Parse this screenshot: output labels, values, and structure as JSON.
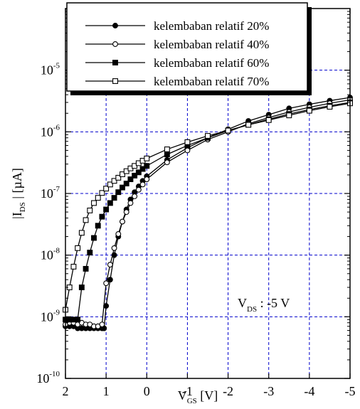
{
  "chart_data": {
    "type": "line",
    "x_axis": {
      "range": [
        2,
        -5
      ],
      "direction": "decreasing left-to-right",
      "ticks": [
        2,
        1,
        0,
        -1,
        -2,
        -3,
        -4,
        -5
      ],
      "tick_labels": [
        "2",
        "1",
        "0",
        "-1",
        "-2",
        "-3",
        "-4",
        "-5"
      ],
      "label_main": "V",
      "label_sub": "GS",
      "label_unit": " [V]"
    },
    "y_axis": {
      "scale": "log",
      "range": [
        1e-10,
        0.0001
      ],
      "ticks": [
        1e-10,
        1e-09,
        1e-08,
        1e-07,
        1e-06,
        1e-05
      ],
      "tick_labels": [
        {
          "base": "10",
          "exp": "-10"
        },
        {
          "base": "10",
          "exp": "-9"
        },
        {
          "base": "10",
          "exp": "-8"
        },
        {
          "base": "10",
          "exp": "-7"
        },
        {
          "base": "10",
          "exp": "-6"
        },
        {
          "base": "10",
          "exp": "-5"
        }
      ],
      "label_pre": "|I",
      "label_sub": "DS",
      "label_post": " | [µA]"
    },
    "grid": true,
    "legend_position": "top",
    "annotation": {
      "main": "V",
      "sub": "DS",
      "rest": " : -5 V"
    },
    "series": [
      {
        "name": "kelembaban relatif 20%",
        "marker": "filled-circle",
        "x": [
          2,
          1.9,
          1.8,
          1.7,
          1.6,
          1.5,
          1.4,
          1.3,
          1.2,
          1.1,
          1.05,
          1.0,
          0.9,
          0.8,
          0.7,
          0.6,
          0.5,
          0.4,
          0.3,
          0.2,
          0.1,
          0,
          -0.5,
          -1,
          -1.5,
          -2,
          -2.5,
          -3,
          -3.5,
          -4,
          -4.5,
          -5
        ],
        "y": [
          7e-10,
          7e-10,
          7e-10,
          6.5e-10,
          6.5e-10,
          6.5e-10,
          6.5e-10,
          6.5e-10,
          6.5e-10,
          6.5e-10,
          6.5e-10,
          1.5e-09,
          4e-09,
          1e-08,
          2e-08,
          3.5e-08,
          5.5e-08,
          8e-08,
          1.05e-07,
          1.3e-07,
          1.6e-07,
          1.9e-07,
          3.5e-07,
          5.5e-07,
          8e-07,
          1.1e-06,
          1.5e-06,
          1.9e-06,
          2.4e-06,
          2.8e-06,
          3.2e-06,
          3.6e-06
        ]
      },
      {
        "name": "kelembaban relatif 40%",
        "marker": "open-circle",
        "x": [
          2,
          1.9,
          1.8,
          1.7,
          1.6,
          1.5,
          1.4,
          1.3,
          1.2,
          1.1,
          1.0,
          0.9,
          0.8,
          0.7,
          0.6,
          0.5,
          0.4,
          0.3,
          0.2,
          0.1,
          0,
          -0.5,
          -1,
          -1.5,
          -2,
          -2.5,
          -3,
          -3.5,
          -4,
          -4.5,
          -5
        ],
        "y": [
          7.5e-10,
          8e-10,
          8e-10,
          7.5e-10,
          8e-10,
          7.5e-10,
          7.5e-10,
          7e-10,
          7e-10,
          7.5e-10,
          3.5e-09,
          7e-09,
          1.3e-08,
          2.2e-08,
          3.5e-08,
          5e-08,
          7e-08,
          9e-08,
          1.15e-07,
          1.4e-07,
          1.7e-07,
          3.2e-07,
          5e-07,
          7.5e-07,
          1e-06,
          1.35e-06,
          1.7e-06,
          2.1e-06,
          2.5e-06,
          2.9e-06,
          3.3e-06
        ]
      },
      {
        "name": "kelembaban relatif 60%",
        "marker": "filled-square",
        "x": [
          2,
          1.9,
          1.8,
          1.7,
          1.6,
          1.5,
          1.4,
          1.3,
          1.2,
          1.1,
          1.0,
          0.9,
          0.8,
          0.7,
          0.6,
          0.5,
          0.4,
          0.3,
          0.2,
          0.1,
          0,
          -0.5,
          -1,
          -1.5,
          -2,
          -2.5,
          -3,
          -3.5,
          -4,
          -4.5,
          -5
        ],
        "y": [
          9e-10,
          9e-10,
          9e-10,
          9e-10,
          3e-09,
          6e-09,
          1.1e-08,
          1.9e-08,
          3e-08,
          4.2e-08,
          5.5e-08,
          7e-08,
          8.5e-08,
          1.05e-07,
          1.25e-07,
          1.45e-07,
          1.7e-07,
          1.95e-07,
          2.2e-07,
          2.5e-07,
          2.8e-07,
          4.3e-07,
          6e-07,
          8e-07,
          1.05e-06,
          1.3e-06,
          1.6e-06,
          1.95e-06,
          2.3e-06,
          2.65e-06,
          3e-06
        ]
      },
      {
        "name": "kelembaban relatif 70%",
        "marker": "open-square",
        "x": [
          2,
          1.9,
          1.8,
          1.7,
          1.6,
          1.5,
          1.4,
          1.3,
          1.2,
          1.1,
          1.0,
          0.9,
          0.8,
          0.7,
          0.6,
          0.5,
          0.4,
          0.3,
          0.2,
          0.1,
          0,
          -0.5,
          -1,
          -1.5,
          -2,
          -2.5,
          -3,
          -3.5,
          -4,
          -4.5,
          -5
        ],
        "y": [
          1.3e-09,
          3e-09,
          6.5e-09,
          1.3e-08,
          2.3e-08,
          3.7e-08,
          5.3e-08,
          7e-08,
          8.5e-08,
          1.02e-07,
          1.2e-07,
          1.4e-07,
          1.6e-07,
          1.8e-07,
          2.05e-07,
          2.3e-07,
          2.55e-07,
          2.8e-07,
          3.1e-07,
          3.4e-07,
          3.7e-07,
          5.2e-07,
          6.8e-07,
          8.6e-07,
          1.05e-06,
          1.3e-06,
          1.55e-06,
          1.85e-06,
          2.2e-06,
          2.55e-06,
          2.9e-06
        ]
      }
    ]
  }
}
